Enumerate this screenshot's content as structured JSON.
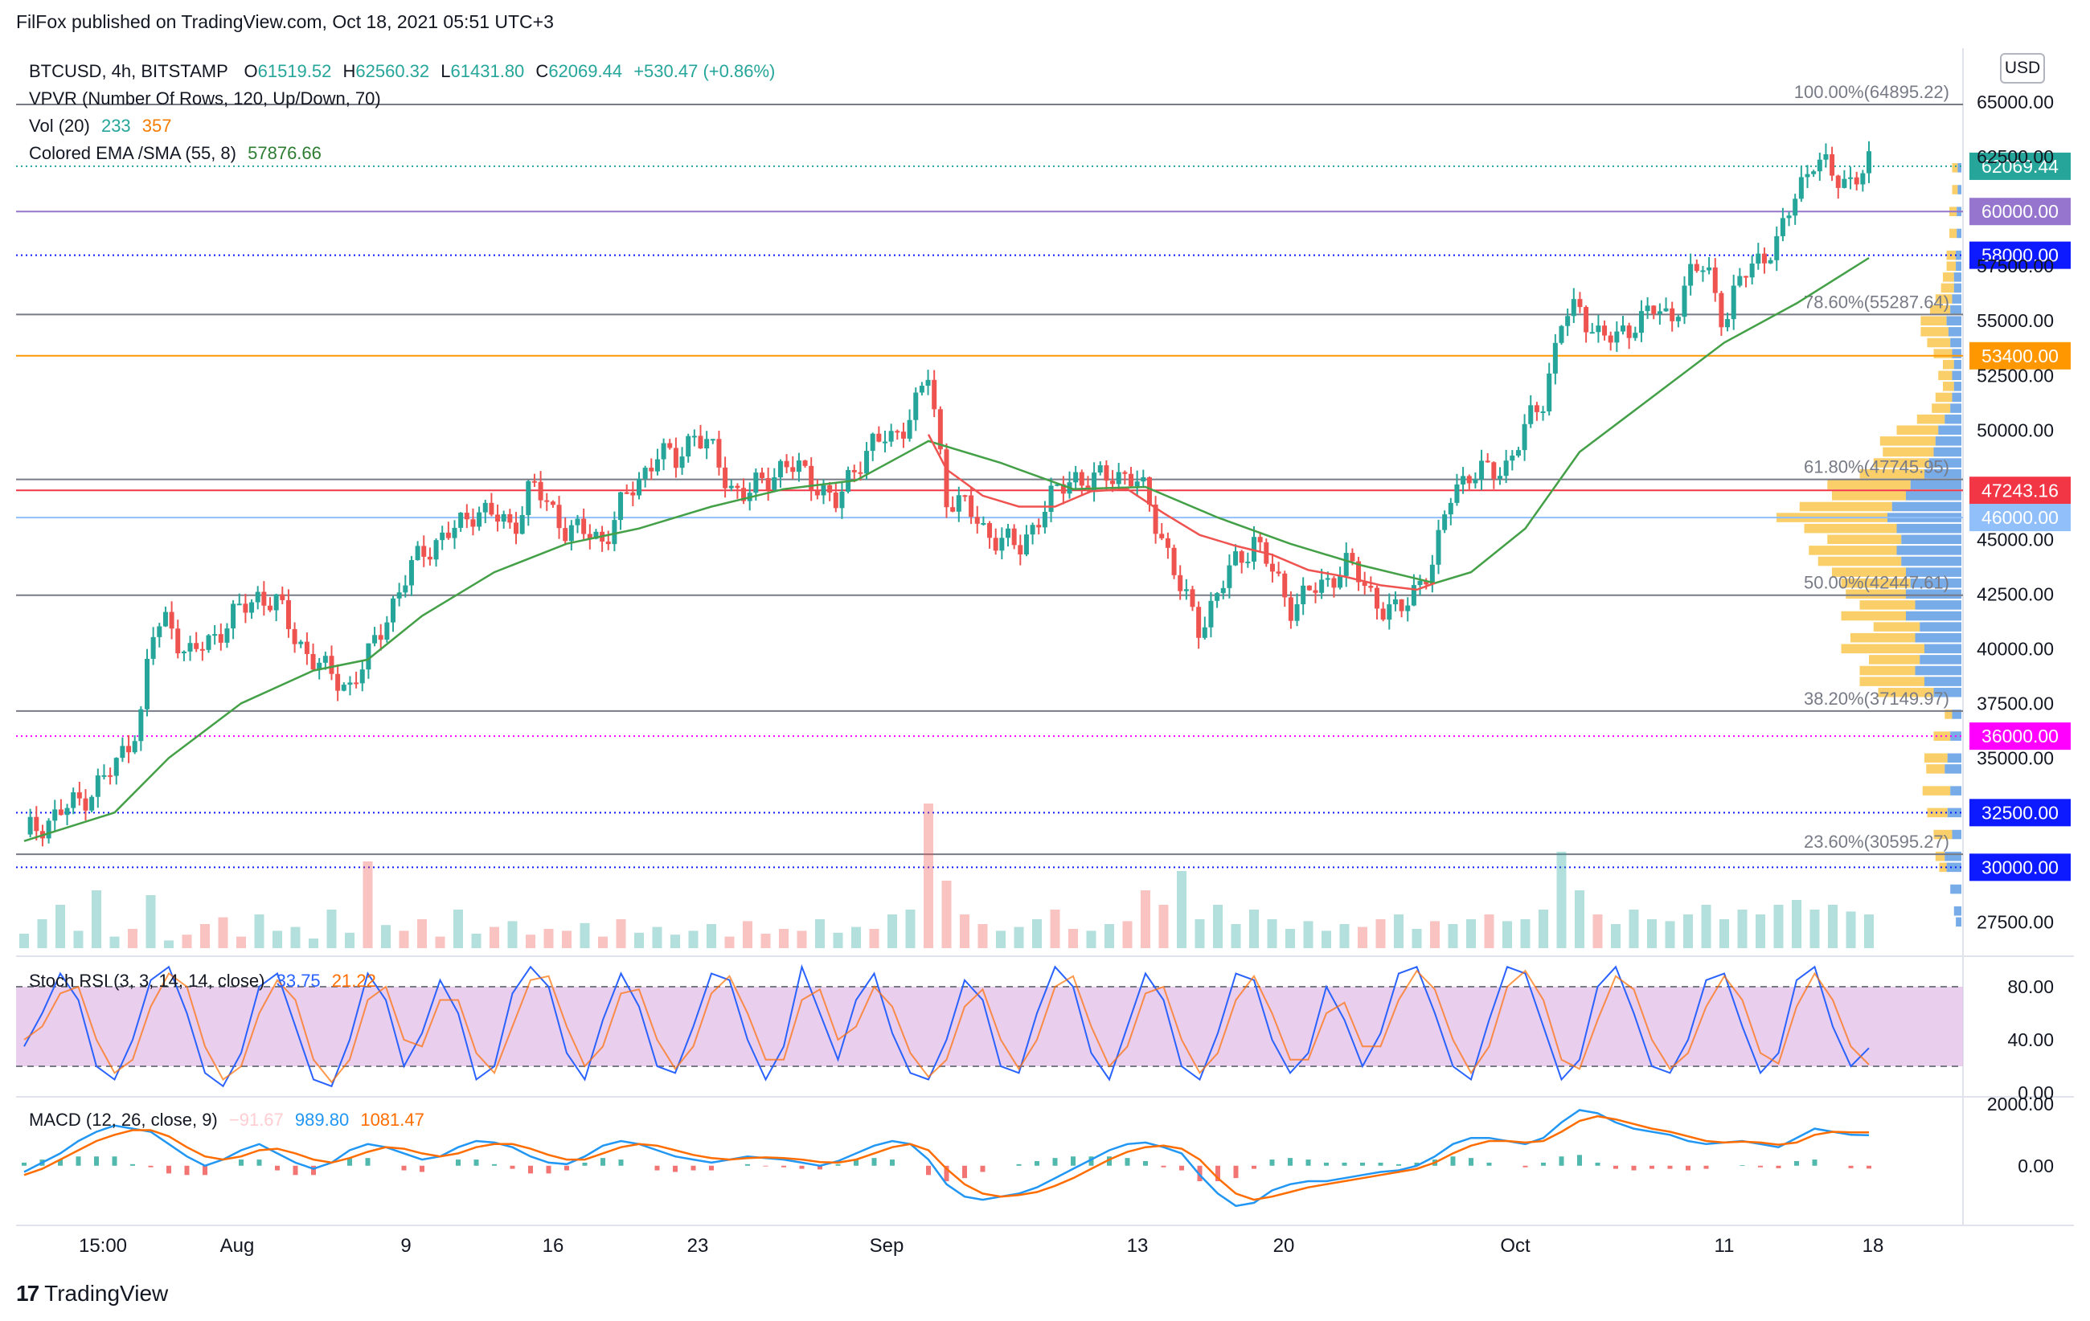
{
  "header": {
    "publisher": "FilFox published on TradingView.com, Oct 18, 2021 05:51 UTC+3"
  },
  "legend": {
    "symbol": "BTCUSD, 4h, BITSTAMP",
    "o_label": "O",
    "o_value": "61519.52",
    "h_label": "H",
    "h_value": "62560.32",
    "l_label": "L",
    "l_value": "61431.80",
    "c_label": "C",
    "c_value": "62069.44",
    "change": "+530.47 (+0.86%)",
    "vpvr": "VPVR (Number Of Rows, 120, Up/Down, 70)",
    "vol_label": "Vol (20)",
    "vol_v1": "233",
    "vol_v2": "357",
    "ema_label": "Colored EMA /SMA (55, 8)",
    "ema_value": "57876.66"
  },
  "currency_button": "USD",
  "stoch_legend": {
    "label": "Stoch RSI (3, 3, 14, 14, close)",
    "k": "33.75",
    "d": "21.22"
  },
  "macd_legend": {
    "label": "MACD (12, 26, close, 9)",
    "hist": "−91.67",
    "macd": "989.80",
    "signal": "1081.47"
  },
  "footer": {
    "brand": "TradingView"
  },
  "colors": {
    "up": "#26a69a",
    "down": "#ef5350",
    "ema": "#43a047",
    "sma": "#ef5350",
    "k": "#2962ff",
    "d": "#ff6d00",
    "stoch_band": "#e1bee7",
    "fib": "#787b86"
  },
  "chart_data": {
    "type": "candlestick",
    "price_axis": {
      "ticks": [
        "65000.00",
        "62500.00",
        "57500.00",
        "55000.00",
        "52500.00",
        "50000.00",
        "45000.00",
        "42500.00",
        "40000.00",
        "37500.00",
        "35000.00",
        "27500.00"
      ],
      "tick_values": [
        65000,
        62500,
        57500,
        55000,
        52500,
        50000,
        45000,
        42500,
        40000,
        37500,
        35000,
        27500
      ],
      "range": [
        26300,
        66000
      ]
    },
    "time_axis": {
      "labels": [
        "15:00",
        "Aug",
        "9",
        "16",
        "23",
        "Sep",
        "13",
        "20",
        "Oct",
        "11",
        "18"
      ]
    },
    "price_badges": [
      {
        "text": "62069.44",
        "value": 62069.44,
        "color": "#26a69a",
        "line": "dotted"
      },
      {
        "text": "60000.00",
        "value": 60000,
        "color": "#9575cd",
        "line": "solid"
      },
      {
        "text": "58000.00",
        "value": 58000,
        "color": "#0d1aff",
        "line": "dotted"
      },
      {
        "text": "53400.00",
        "value": 53400,
        "color": "#ff9800",
        "line": "solid"
      },
      {
        "text": "47243.16",
        "value": 47243.16,
        "color": "#f23645",
        "line": "solid"
      },
      {
        "text": "46000.00",
        "value": 46000,
        "color": "#90bff9",
        "line": "solid"
      },
      {
        "text": "36000.00",
        "value": 36000,
        "color": "#ff00ff",
        "line": "dotted"
      },
      {
        "text": "32500.00",
        "value": 32500,
        "color": "#0d1aff",
        "line": "dotted"
      },
      {
        "text": "30000.00",
        "value": 30000,
        "color": "#0d1aff",
        "line": "dotted"
      }
    ],
    "fib_levels": [
      {
        "text": "100.00%(64895.22)",
        "value": 64895.22
      },
      {
        "text": "78.60%(55287.64)",
        "value": 55287.64
      },
      {
        "text": "61.80%(47745.95)",
        "value": 47745.95
      },
      {
        "text": "50.00%(42447.61)",
        "value": 42447.61
      },
      {
        "text": "38.20%(37149.97)",
        "value": 37149.97
      },
      {
        "text": "23.60%(30595.27)",
        "value": 30595.27
      }
    ],
    "price_path": [
      [
        0,
        31500
      ],
      [
        3,
        33000
      ],
      [
        5,
        34500
      ],
      [
        6.5,
        37000
      ],
      [
        7,
        40500
      ],
      [
        8,
        41500
      ],
      [
        9,
        39500
      ],
      [
        11,
        41000
      ],
      [
        13,
        42500
      ],
      [
        14,
        42000
      ],
      [
        15,
        40500
      ],
      [
        16.5,
        39000
      ],
      [
        18,
        38300
      ],
      [
        19,
        39500
      ],
      [
        20,
        41500
      ],
      [
        21,
        43000
      ],
      [
        22,
        44500
      ],
      [
        24,
        45500
      ],
      [
        25,
        46500
      ],
      [
        27,
        45500
      ],
      [
        28,
        47500
      ],
      [
        29,
        46500
      ],
      [
        30,
        45500
      ],
      [
        32,
        45000
      ],
      [
        33,
        46500
      ],
      [
        35,
        49000
      ],
      [
        36,
        48500
      ],
      [
        37,
        50000
      ],
      [
        38,
        49000
      ],
      [
        39,
        47500
      ],
      [
        40,
        47000
      ],
      [
        42,
        48500
      ],
      [
        44,
        47500
      ],
      [
        45,
        46500
      ],
      [
        46,
        48500
      ],
      [
        47,
        49500
      ],
      [
        48,
        49500
      ],
      [
        49.5,
        51500
      ],
      [
        50,
        52500
      ],
      [
        51,
        47000
      ],
      [
        52,
        46500
      ],
      [
        53,
        45500
      ],
      [
        54,
        45000
      ],
      [
        55,
        44500
      ],
      [
        56,
        46000
      ],
      [
        57,
        47000
      ],
      [
        58,
        48000
      ],
      [
        59,
        47500
      ],
      [
        60,
        48000
      ],
      [
        61,
        48000
      ],
      [
        62,
        47000
      ],
      [
        63,
        45000
      ],
      [
        64,
        42500
      ],
      [
        65,
        41000
      ],
      [
        66,
        42500
      ],
      [
        67,
        44000
      ],
      [
        68,
        45000
      ],
      [
        69,
        43500
      ],
      [
        70,
        42000
      ],
      [
        72,
        43000
      ],
      [
        73,
        44000
      ],
      [
        74,
        43000
      ],
      [
        75,
        42000
      ],
      [
        76,
        41500
      ],
      [
        77,
        43000
      ],
      [
        78,
        44000
      ],
      [
        79,
        47500
      ],
      [
        80,
        48000
      ],
      [
        81,
        48000
      ],
      [
        82,
        48500
      ],
      [
        83,
        50000
      ],
      [
        84,
        51500
      ],
      [
        85,
        55000
      ],
      [
        86,
        55500
      ],
      [
        87,
        54500
      ],
      [
        88,
        54000
      ],
      [
        89,
        55000
      ],
      [
        90,
        55500
      ],
      [
        91,
        55000
      ],
      [
        92,
        57000
      ],
      [
        93,
        57500
      ],
      [
        94,
        55000
      ],
      [
        95,
        57000
      ],
      [
        96,
        58000
      ],
      [
        97,
        58500
      ],
      [
        98,
        61000
      ],
      [
        99,
        62500
      ],
      [
        100,
        61500
      ],
      [
        101,
        61500
      ],
      [
        102,
        62069.44
      ]
    ],
    "sma_path": [
      [
        50,
        49800
      ],
      [
        51,
        48200
      ],
      [
        53,
        47000
      ],
      [
        55,
        46500
      ],
      [
        57,
        46500
      ],
      [
        59,
        47200
      ],
      [
        61,
        47300
      ],
      [
        63,
        46200
      ],
      [
        65,
        45200
      ],
      [
        67,
        44700
      ],
      [
        69,
        44300
      ],
      [
        71,
        43600
      ],
      [
        73,
        43300
      ],
      [
        75,
        42900
      ],
      [
        77,
        42700
      ],
      [
        78,
        43000
      ]
    ],
    "ema_path": [
      [
        0,
        31200
      ],
      [
        5,
        32500
      ],
      [
        8,
        35000
      ],
      [
        12,
        37500
      ],
      [
        16,
        39000
      ],
      [
        19,
        39500
      ],
      [
        22,
        41500
      ],
      [
        26,
        43500
      ],
      [
        30,
        44800
      ],
      [
        34,
        45500
      ],
      [
        38,
        46500
      ],
      [
        42,
        47300
      ],
      [
        46,
        47700
      ],
      [
        50,
        49500
      ],
      [
        54,
        48500
      ],
      [
        58,
        47300
      ],
      [
        62,
        47400
      ],
      [
        66,
        46000
      ],
      [
        70,
        44800
      ],
      [
        74,
        43800
      ],
      [
        78,
        43000
      ],
      [
        80,
        43500
      ],
      [
        83,
        45500
      ],
      [
        86,
        49000
      ],
      [
        90,
        51500
      ],
      [
        94,
        54000
      ],
      [
        98,
        55800
      ],
      [
        102,
        57876.66
      ]
    ],
    "volume": [
      15,
      30,
      45,
      18,
      60,
      12,
      20,
      55,
      8,
      14,
      25,
      32,
      12,
      35,
      18,
      22,
      10,
      40,
      16,
      90,
      24,
      18,
      30,
      12,
      40,
      15,
      22,
      28,
      14,
      20,
      18,
      26,
      12,
      30,
      16,
      22,
      14,
      18,
      25,
      12,
      28,
      15,
      20,
      18,
      30,
      16,
      22,
      20,
      35,
      40,
      150,
      70,
      35,
      25,
      18,
      22,
      30,
      40,
      20,
      18,
      25,
      28,
      60,
      45,
      80,
      30,
      45,
      25,
      40,
      30,
      20,
      28,
      18,
      25,
      22,
      30,
      35,
      20,
      28,
      25,
      30,
      35,
      28,
      30,
      40,
      100,
      60,
      35,
      25,
      40,
      30,
      28,
      35,
      45,
      30,
      40,
      35,
      45,
      50,
      40,
      45,
      38,
      35
    ],
    "stoch": {
      "bands": [
        20,
        80
      ],
      "axis": [
        "80.00",
        "40.00",
        "0.00"
      ],
      "axis_values": [
        80,
        40,
        0
      ],
      "k": [
        35,
        60,
        90,
        70,
        20,
        10,
        40,
        85,
        95,
        60,
        15,
        5,
        30,
        80,
        90,
        50,
        10,
        5,
        40,
        90,
        70,
        20,
        45,
        85,
        60,
        10,
        20,
        75,
        95,
        80,
        30,
        10,
        55,
        90,
        65,
        20,
        15,
        50,
        90,
        85,
        40,
        10,
        35,
        95,
        60,
        25,
        70,
        90,
        45,
        15,
        10,
        40,
        85,
        70,
        20,
        15,
        60,
        95,
        80,
        30,
        10,
        50,
        90,
        70,
        20,
        10,
        45,
        90,
        85,
        40,
        15,
        30,
        80,
        55,
        20,
        45,
        90,
        95,
        60,
        20,
        10,
        55,
        95,
        90,
        50,
        10,
        25,
        80,
        95,
        60,
        20,
        15,
        40,
        85,
        90,
        50,
        15,
        30,
        85,
        95,
        50,
        20,
        33.75
      ],
      "d": [
        40,
        50,
        75,
        80,
        40,
        15,
        25,
        65,
        90,
        80,
        35,
        10,
        20,
        60,
        85,
        70,
        25,
        8,
        25,
        70,
        80,
        40,
        35,
        70,
        70,
        30,
        15,
        50,
        85,
        88,
        50,
        20,
        35,
        75,
        78,
        40,
        18,
        35,
        75,
        88,
        60,
        25,
        25,
        70,
        78,
        40,
        50,
        80,
        65,
        30,
        12,
        25,
        65,
        78,
        40,
        18,
        40,
        80,
        88,
        50,
        20,
        35,
        75,
        80,
        40,
        15,
        30,
        70,
        88,
        60,
        25,
        25,
        60,
        68,
        35,
        35,
        70,
        92,
        78,
        40,
        15,
        35,
        80,
        92,
        70,
        25,
        18,
        55,
        88,
        78,
        40,
        18,
        30,
        65,
        88,
        70,
        30,
        22,
        65,
        90,
        70,
        35,
        21.22
      ]
    },
    "macd": {
      "axis": [
        "2000.00",
        "0.00"
      ],
      "axis_values": [
        2000,
        0
      ],
      "range": [
        -1800,
        2100
      ],
      "macd_line": [
        -200,
        100,
        400,
        800,
        1100,
        1300,
        1200,
        1100,
        700,
        300,
        0,
        200,
        500,
        700,
        400,
        100,
        -100,
        100,
        500,
        700,
        600,
        400,
        200,
        300,
        600,
        800,
        750,
        600,
        300,
        100,
        50,
        300,
        650,
        800,
        700,
        500,
        300,
        200,
        100,
        200,
        300,
        250,
        200,
        100,
        0,
        150,
        400,
        650,
        800,
        700,
        200,
        -600,
        -1000,
        -1100,
        -1000,
        -900,
        -700,
        -400,
        -100,
        200,
        500,
        700,
        750,
        600,
        400,
        -300,
        -900,
        -1300,
        -1200,
        -800,
        -600,
        -500,
        -500,
        -400,
        -300,
        -200,
        -150,
        0,
        300,
        700,
        900,
        900,
        800,
        700,
        900,
        1400,
        1800,
        1700,
        1400,
        1200,
        1100,
        1000,
        800,
        700,
        750,
        800,
        700,
        600,
        900,
        1200,
        1100,
        1000,
        989.8
      ],
      "signal_line": [
        -300,
        -100,
        200,
        500,
        800,
        1000,
        1150,
        1150,
        950,
        600,
        300,
        200,
        300,
        500,
        550,
        400,
        200,
        100,
        250,
        450,
        600,
        550,
        400,
        300,
        400,
        600,
        700,
        700,
        550,
        350,
        200,
        200,
        400,
        600,
        700,
        650,
        500,
        350,
        250,
        200,
        250,
        270,
        250,
        200,
        120,
        100,
        200,
        400,
        600,
        700,
        500,
        -100,
        -600,
        -900,
        -1000,
        -950,
        -850,
        -650,
        -400,
        -100,
        200,
        450,
        600,
        650,
        550,
        200,
        -400,
        -900,
        -1100,
        -1000,
        -850,
        -700,
        -600,
        -500,
        -400,
        -300,
        -200,
        -100,
        100,
        400,
        650,
        800,
        800,
        750,
        800,
        1100,
        1450,
        1600,
        1500,
        1350,
        1200,
        1100,
        950,
        800,
        750,
        780,
        750,
        680,
        750,
        1000,
        1100,
        1080,
        1081.47
      ]
    },
    "vpvr": {
      "rows": [
        [
          27500,
          6,
          0
        ],
        [
          28000,
          8,
          0
        ],
        [
          29000,
          12,
          0
        ],
        [
          30000,
          16,
          8
        ],
        [
          30500,
          18,
          10
        ],
        [
          31500,
          10,
          20
        ],
        [
          32500,
          15,
          22
        ],
        [
          33500,
          12,
          30
        ],
        [
          34500,
          18,
          20
        ],
        [
          35000,
          15,
          25
        ],
        [
          36000,
          12,
          18
        ],
        [
          37000,
          10,
          8
        ],
        [
          38000,
          30,
          60
        ],
        [
          38500,
          40,
          70
        ],
        [
          39000,
          50,
          60
        ],
        [
          39500,
          45,
          55
        ],
        [
          40000,
          40,
          90
        ],
        [
          40500,
          50,
          70
        ],
        [
          41000,
          45,
          50
        ],
        [
          41500,
          60,
          70
        ],
        [
          42000,
          50,
          60
        ],
        [
          42500,
          60,
          65
        ],
        [
          43000,
          55,
          75
        ],
        [
          43500,
          60,
          80
        ],
        [
          44000,
          65,
          90
        ],
        [
          44500,
          70,
          95
        ],
        [
          45000,
          65,
          80
        ],
        [
          45500,
          70,
          100
        ],
        [
          46000,
          80,
          120
        ],
        [
          46500,
          75,
          100
        ],
        [
          47000,
          60,
          80
        ],
        [
          47500,
          55,
          90
        ],
        [
          48000,
          40,
          70
        ],
        [
          48500,
          35,
          60
        ],
        [
          49000,
          30,
          55
        ],
        [
          49500,
          28,
          60
        ],
        [
          50000,
          25,
          45
        ],
        [
          50500,
          18,
          30
        ],
        [
          51000,
          12,
          20
        ],
        [
          51500,
          10,
          18
        ],
        [
          52000,
          8,
          12
        ],
        [
          52500,
          10,
          15
        ],
        [
          53000,
          8,
          12
        ],
        [
          53500,
          10,
          20
        ],
        [
          54000,
          12,
          25
        ],
        [
          54500,
          14,
          30
        ],
        [
          55000,
          16,
          28
        ],
        [
          55500,
          12,
          22
        ],
        [
          56000,
          10,
          18
        ],
        [
          56500,
          8,
          14
        ],
        [
          57000,
          8,
          12
        ],
        [
          57500,
          6,
          10
        ],
        [
          58000,
          6,
          10
        ],
        [
          59000,
          5,
          8
        ],
        [
          60000,
          5,
          8
        ],
        [
          61000,
          4,
          6
        ],
        [
          62000,
          4,
          6
        ]
      ]
    }
  }
}
